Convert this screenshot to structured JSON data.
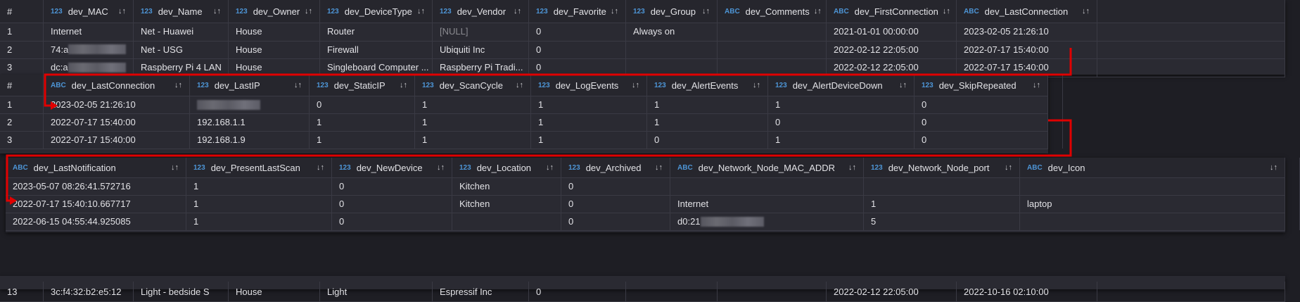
{
  "sort_icon": "sort-arrows-icon",
  "arrow_color": "#e00000",
  "panels": [
    {
      "columns": [
        {
          "type": "",
          "name": "#"
        },
        {
          "type": "123",
          "name": "dev_MAC"
        },
        {
          "type": "123",
          "name": "dev_Name"
        },
        {
          "type": "123",
          "name": "dev_Owner"
        },
        {
          "type": "123",
          "name": "dev_DeviceType"
        },
        {
          "type": "123",
          "name": "dev_Vendor"
        },
        {
          "type": "123",
          "name": "dev_Favorite"
        },
        {
          "type": "123",
          "name": "dev_Group"
        },
        {
          "type": "ABC",
          "name": "dev_Comments"
        },
        {
          "type": "ABC",
          "name": "dev_FirstConnection"
        },
        {
          "type": "ABC",
          "name": "dev_LastConnection"
        }
      ],
      "rows": [
        [
          "1",
          "Internet",
          "Net - Huawei",
          "House",
          "Router",
          "[NULL]",
          "0",
          "Always on",
          "",
          "2021-01-01 00:00:00",
          "2023-02-05 21:26:10"
        ],
        [
          "2",
          "74:a",
          "Net - USG",
          "House",
          "Firewall",
          "Ubiquiti Inc",
          "0",
          "",
          "",
          "2022-02-12 22:05:00",
          "2022-07-17 15:40:00"
        ],
        [
          "3",
          "dc:a",
          "Raspberry Pi 4 LAN",
          "House",
          "Singleboard Computer ...",
          "Raspberry Pi Tradi...",
          "0",
          "",
          "",
          "2022-02-12 22:05:00",
          "2022-07-17 15:40:00"
        ]
      ]
    },
    {
      "columns": [
        {
          "type": "",
          "name": "#"
        },
        {
          "type": "ABC",
          "name": "dev_LastConnection"
        },
        {
          "type": "123",
          "name": "dev_LastIP"
        },
        {
          "type": "123",
          "name": "dev_StaticIP"
        },
        {
          "type": "123",
          "name": "dev_ScanCycle"
        },
        {
          "type": "123",
          "name": "dev_LogEvents"
        },
        {
          "type": "123",
          "name": "dev_AlertEvents"
        },
        {
          "type": "123",
          "name": "dev_AlertDeviceDown"
        },
        {
          "type": "123",
          "name": "dev_SkipRepeated"
        }
      ],
      "rows": [
        [
          "1",
          "2023-02-05 21:26:10",
          "",
          "0",
          "1",
          "1",
          "1",
          "1",
          "0"
        ],
        [
          "2",
          "2022-07-17 15:40:00",
          "192.168.1.1",
          "1",
          "1",
          "1",
          "1",
          "0",
          "0"
        ],
        [
          "3",
          "2022-07-17 15:40:00",
          "192.168.1.9",
          "1",
          "1",
          "1",
          "0",
          "1",
          "0"
        ]
      ]
    },
    {
      "columns": [
        {
          "type": "ABC",
          "name": "dev_LastNotification"
        },
        {
          "type": "123",
          "name": "dev_PresentLastScan"
        },
        {
          "type": "123",
          "name": "dev_NewDevice"
        },
        {
          "type": "123",
          "name": "dev_Location"
        },
        {
          "type": "123",
          "name": "dev_Archived"
        },
        {
          "type": "ABC",
          "name": "dev_Network_Node_MAC_ADDR"
        },
        {
          "type": "123",
          "name": "dev_Network_Node_port"
        },
        {
          "type": "ABC",
          "name": "dev_Icon"
        }
      ],
      "rows": [
        [
          "2023-05-07 08:26:41.572716",
          "1",
          "0",
          "Kitchen",
          "0",
          "",
          "",
          ""
        ],
        [
          "2022-07-17 15:40:10.667717",
          "1",
          "0",
          "Kitchen",
          "0",
          "Internet",
          "1",
          "laptop"
        ],
        [
          "2022-06-15 04:55:44.925085",
          "1",
          "0",
          "",
          "0",
          "d0:21",
          "5",
          ""
        ]
      ]
    },
    {
      "columns": [],
      "rows": [
        [
          "13",
          "3c:f4:32:b2:e5:12",
          "Light - bedside S",
          "House",
          "Light",
          "Espressif Inc",
          "0",
          "",
          "",
          "2022-02-12 22:05:00",
          "2022-10-16 02:10:00"
        ]
      ]
    }
  ]
}
